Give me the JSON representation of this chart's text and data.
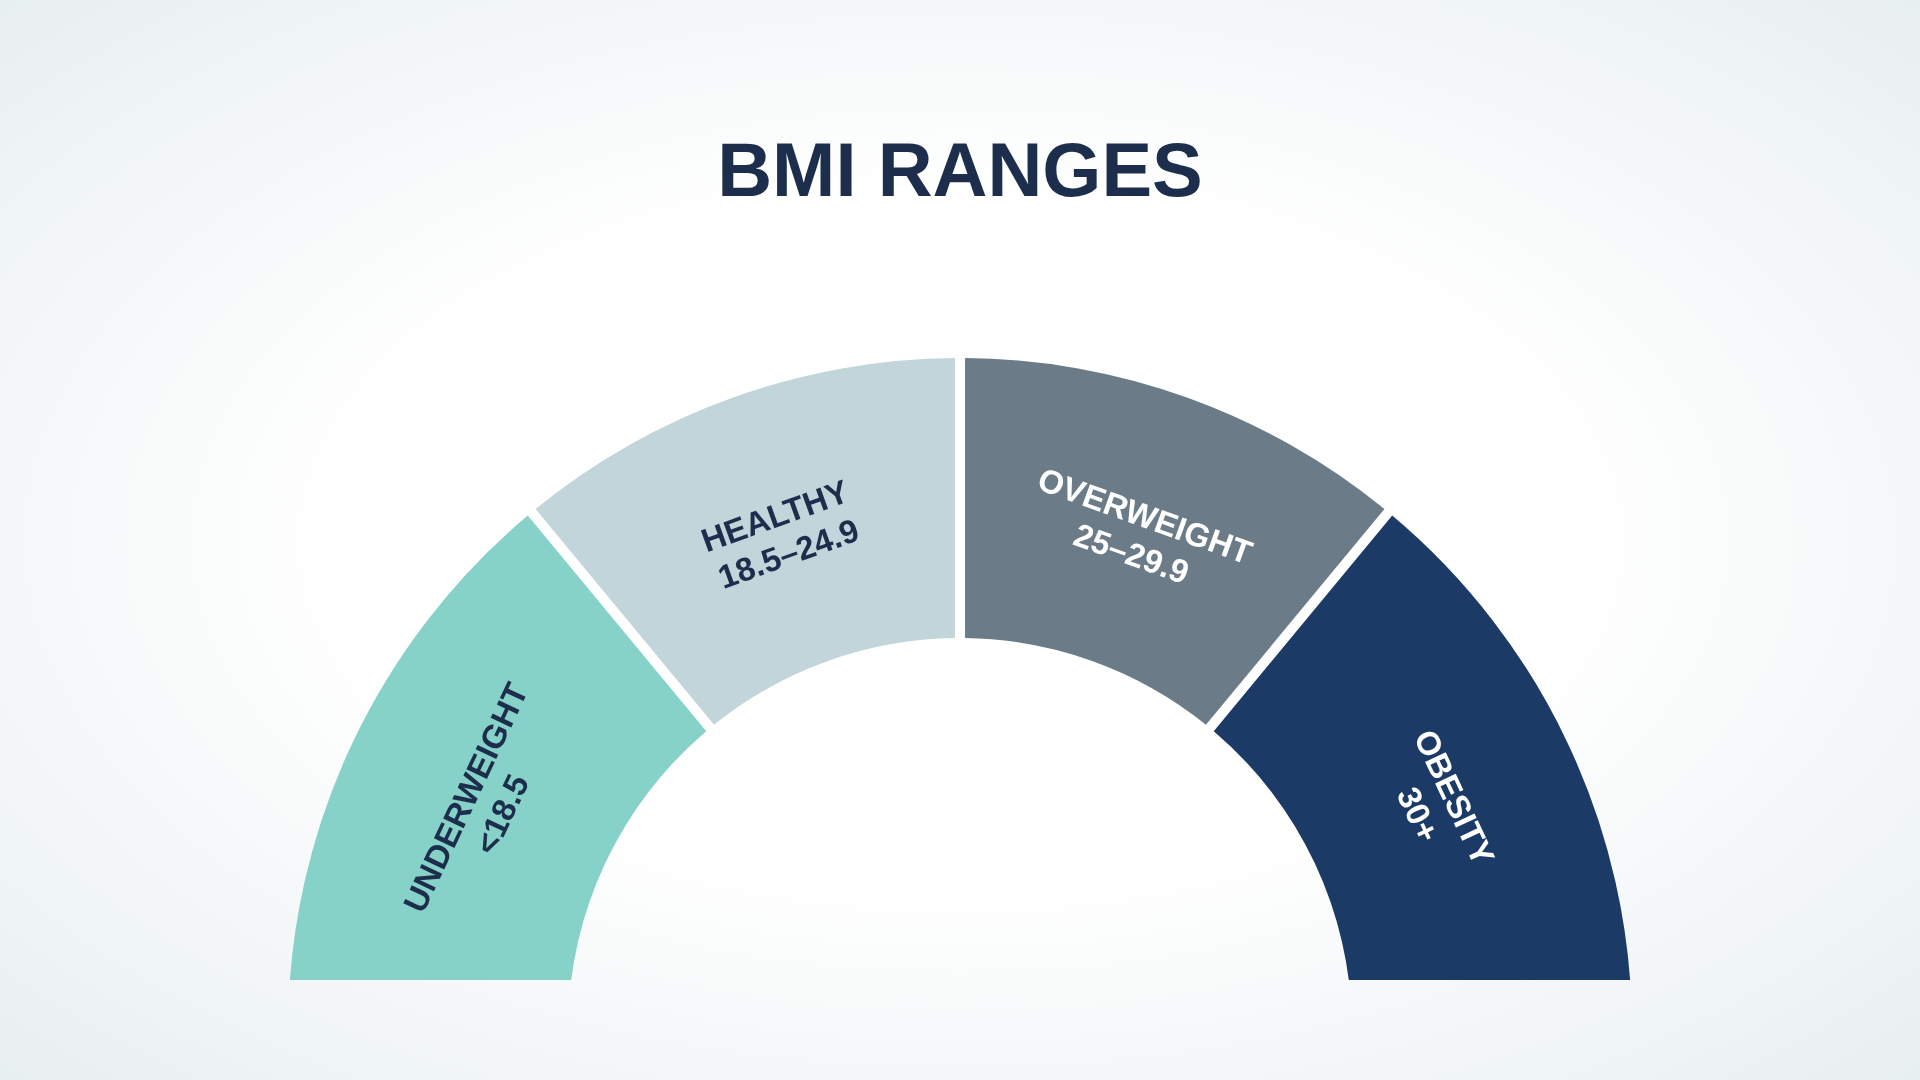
{
  "chart_data": {
    "type": "donut",
    "title": "BMI RANGES",
    "categories": [
      "UNDERWEIGHT\n<18.5",
      "HEALTHY\n18.5–24.9",
      "OVERWEIGHT\n25–29.9",
      "OBESITY\n30+"
    ],
    "values": [
      28,
      22,
      22,
      28
    ],
    "colors": [
      "#87d2c8",
      "#c2d5da",
      "#6b7c88",
      "#1c3a66"
    ],
    "legend": false
  }
}
